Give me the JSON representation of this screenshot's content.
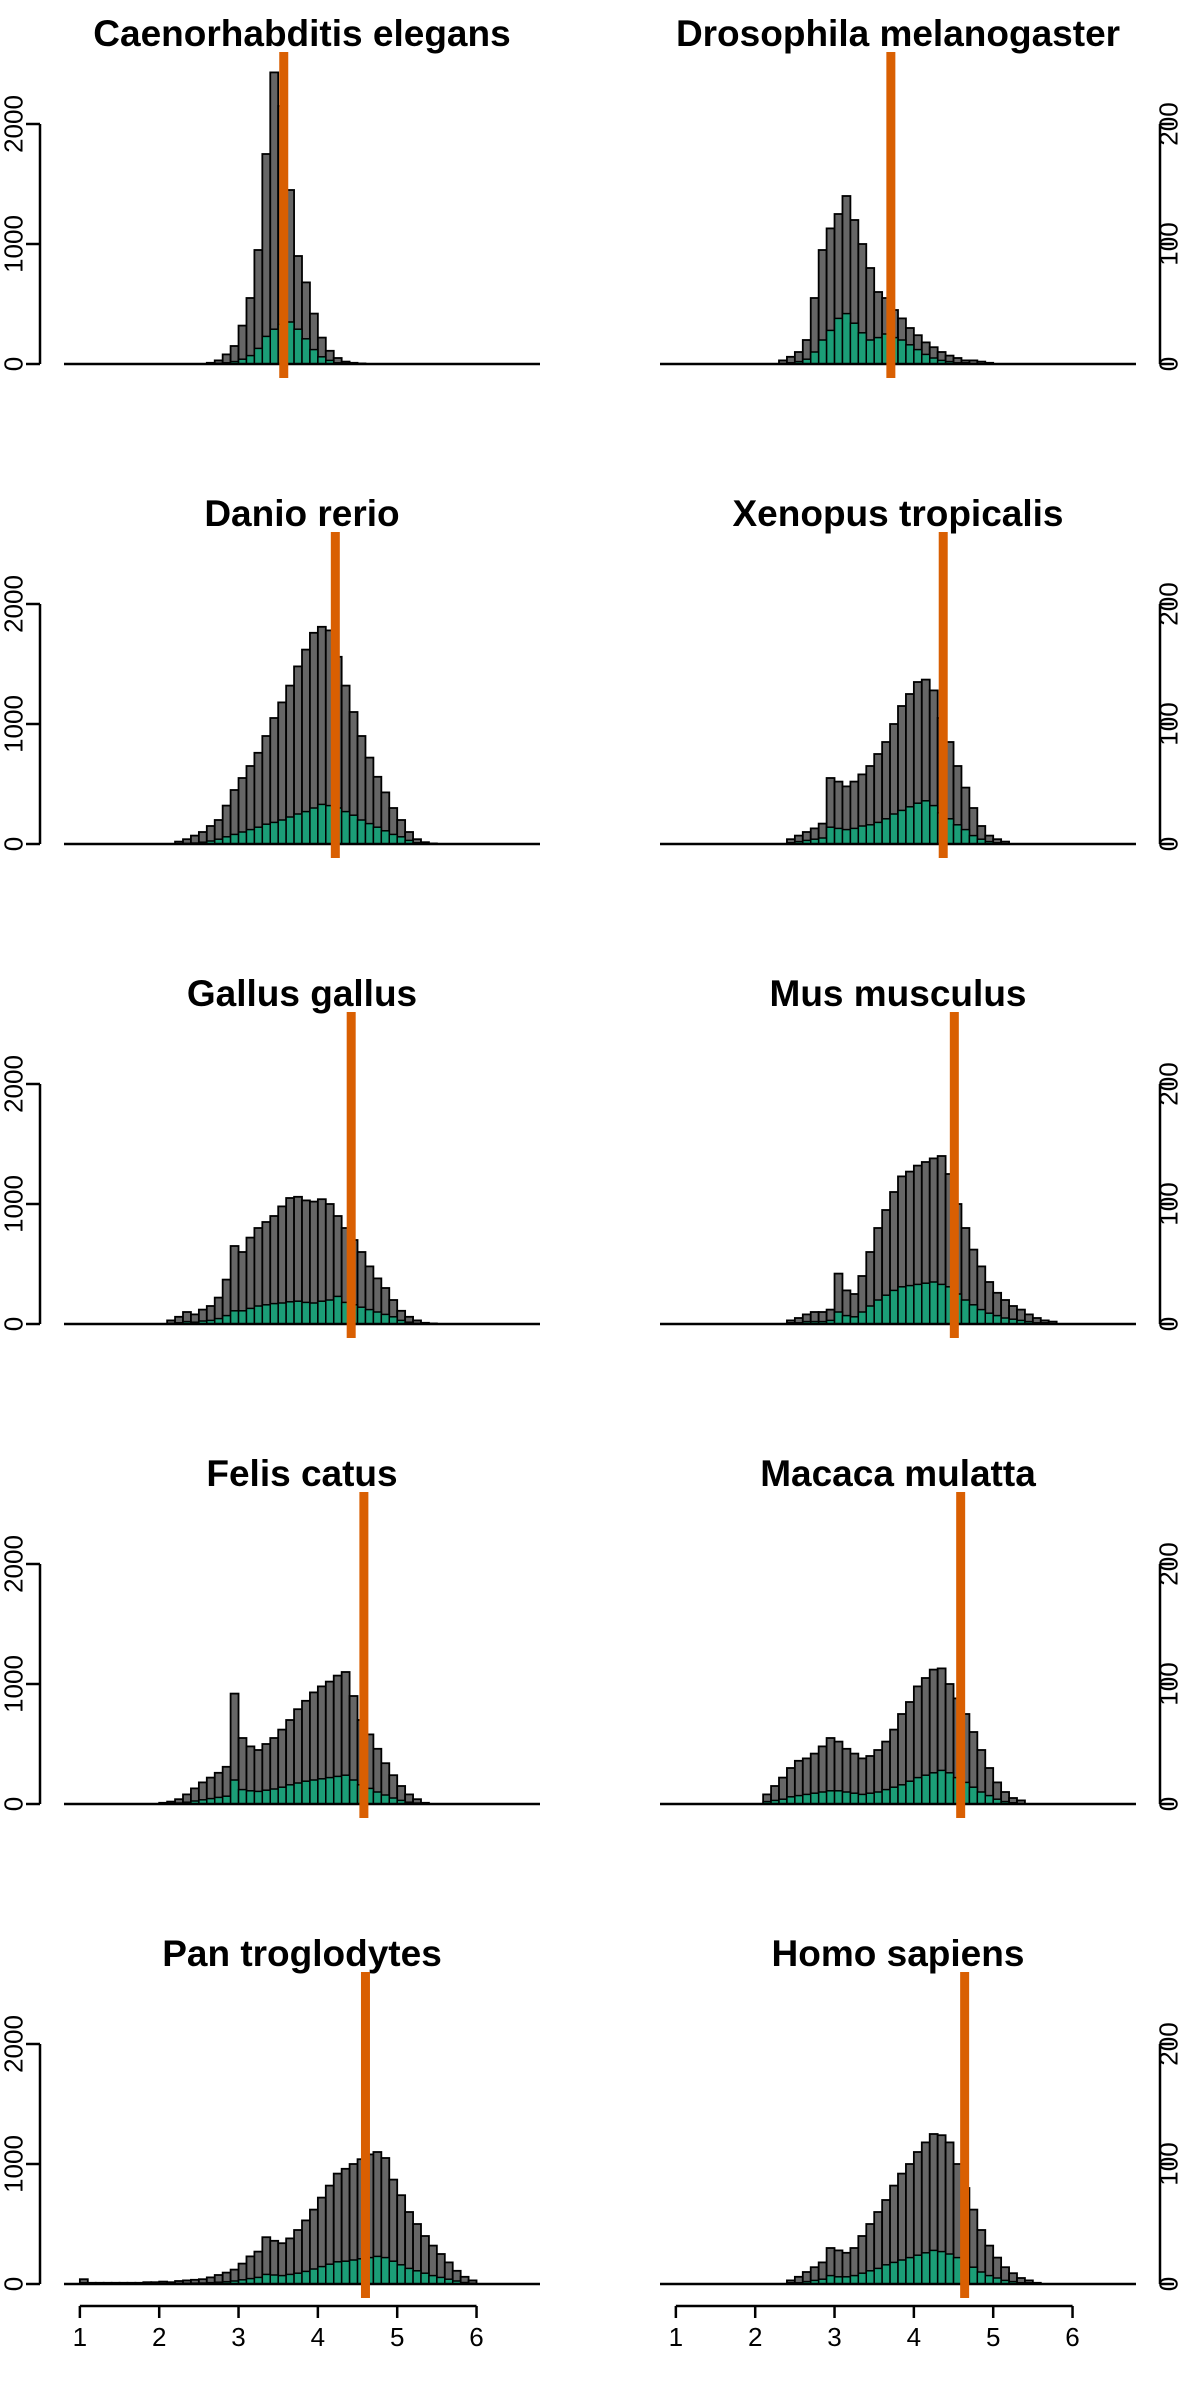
{
  "colors": {
    "total_bars": "#666666",
    "subset_bars": "#1b9e77",
    "median_line": "#d95f02"
  },
  "chart_data": [
    {
      "type": "bar",
      "title": "Caenorhabditis elegans",
      "median": 3.57,
      "bin_start": 2.6,
      "bin_width": 0.1,
      "gray": [
        10,
        30,
        80,
        150,
        320,
        550,
        950,
        1750,
        2430,
        2150,
        1450,
        900,
        680,
        420,
        220,
        110,
        50,
        20,
        10,
        5
      ],
      "green": [
        0,
        5,
        10,
        20,
        40,
        70,
        130,
        230,
        290,
        330,
        350,
        290,
        210,
        120,
        60,
        30,
        10,
        5,
        2,
        1
      ],
      "ylim": [
        0,
        2550
      ],
      "yticks": [
        0,
        1000,
        2000
      ],
      "ytick_labels": [
        "0",
        "1000",
        "2000"
      ],
      "y_axis_side": "left",
      "xlim": [
        0.8,
        6.8
      ],
      "xticks": [],
      "xtick_labels": []
    },
    {
      "type": "bar",
      "title": "Drosophila melanogaster",
      "median": 3.71,
      "bin_start": 2.3,
      "bin_width": 0.1,
      "gray": [
        3,
        6,
        10,
        20,
        55,
        95,
        113,
        125,
        140,
        120,
        100,
        80,
        60,
        55,
        45,
        38,
        30,
        24,
        18,
        14,
        10,
        7,
        5,
        3,
        3,
        2,
        1
      ],
      "green": [
        0,
        1,
        2,
        4,
        10,
        20,
        28,
        38,
        42,
        34,
        26,
        20,
        22,
        25,
        22,
        20,
        16,
        12,
        8,
        5,
        3,
        2,
        1,
        1,
        0,
        0,
        0
      ],
      "ylim": [
        0,
        255
      ],
      "yticks": [
        0,
        100,
        200
      ],
      "ytick_labels": [
        "0",
        "100",
        "200"
      ],
      "y_axis_side": "right",
      "xlim": [
        0.8,
        6.8
      ],
      "xticks": [],
      "xtick_labels": []
    },
    {
      "type": "bar",
      "title": "Danio rerio",
      "median": 4.22,
      "bin_start": 2.2,
      "bin_width": 0.1,
      "gray": [
        20,
        40,
        70,
        100,
        150,
        200,
        320,
        450,
        550,
        650,
        760,
        900,
        1050,
        1180,
        1320,
        1480,
        1620,
        1760,
        1810,
        1780,
        1560,
        1320,
        1100,
        900,
        720,
        560,
        430,
        300,
        200,
        100,
        40,
        15,
        5
      ],
      "green": [
        2,
        5,
        8,
        15,
        25,
        40,
        60,
        80,
        100,
        120,
        140,
        165,
        180,
        200,
        225,
        250,
        270,
        300,
        330,
        320,
        300,
        270,
        240,
        200,
        170,
        140,
        110,
        80,
        60,
        30,
        10,
        3,
        1
      ],
      "ylim": [
        0,
        2550
      ],
      "yticks": [
        0,
        1000,
        2000
      ],
      "ytick_labels": [
        "0",
        "1000",
        "2000"
      ],
      "y_axis_side": "left",
      "xlim": [
        0.8,
        6.8
      ],
      "xticks": [],
      "xtick_labels": []
    },
    {
      "type": "bar",
      "title": "Xenopus tropicalis",
      "median": 4.37,
      "bin_start": 2.4,
      "bin_width": 0.1,
      "gray": [
        4,
        7,
        10,
        13,
        17,
        55,
        52,
        48,
        52,
        58,
        65,
        75,
        85,
        100,
        115,
        125,
        135,
        137,
        128,
        105,
        85,
        65,
        47,
        30,
        15,
        7,
        4,
        2
      ],
      "green": [
        1,
        2,
        3,
        4,
        5,
        14,
        13,
        12,
        13,
        15,
        16,
        18,
        21,
        25,
        28,
        31,
        34,
        36,
        32,
        26,
        21,
        16,
        12,
        7,
        4,
        2,
        1,
        0
      ],
      "ylim": [
        0,
        255
      ],
      "yticks": [
        0,
        100,
        200
      ],
      "ytick_labels": [
        "0",
        "100",
        "200"
      ],
      "y_axis_side": "right",
      "xlim": [
        0.8,
        6.8
      ],
      "xticks": [],
      "xtick_labels": []
    },
    {
      "type": "bar",
      "title": "Gallus gallus",
      "median": 4.42,
      "bin_start": 2.0,
      "bin_width": 0.1,
      "gray": [
        0,
        30,
        60,
        100,
        80,
        120,
        150,
        220,
        370,
        650,
        600,
        720,
        800,
        850,
        900,
        980,
        1050,
        1060,
        1030,
        1020,
        1040,
        1000,
        900,
        800,
        700,
        600,
        480,
        380,
        300,
        200,
        110,
        60,
        30,
        10,
        5
      ],
      "green": [
        0,
        5,
        10,
        20,
        15,
        25,
        30,
        45,
        70,
        110,
        110,
        130,
        150,
        160,
        170,
        175,
        185,
        190,
        180,
        175,
        190,
        200,
        230,
        180,
        160,
        140,
        120,
        100,
        80,
        60,
        30,
        15,
        5,
        2,
        1
      ],
      "ylim": [
        0,
        2550
      ],
      "yticks": [
        0,
        1000,
        2000
      ],
      "ytick_labels": [
        "0",
        "1000",
        "2000"
      ],
      "y_axis_side": "left",
      "xlim": [
        0.8,
        6.8
      ],
      "xticks": [],
      "xtick_labels": []
    },
    {
      "type": "bar",
      "title": "Mus musculus",
      "median": 4.51,
      "bin_start": 2.4,
      "bin_width": 0.1,
      "gray": [
        3,
        5,
        8,
        10,
        10,
        12,
        42,
        28,
        25,
        40,
        60,
        80,
        95,
        110,
        123,
        127,
        132,
        135,
        138,
        140,
        125,
        100,
        80,
        62,
        48,
        35,
        26,
        20,
        15,
        12,
        8,
        5,
        3,
        2
      ],
      "green": [
        1,
        1,
        2,
        2,
        2,
        3,
        10,
        7,
        6,
        10,
        15,
        20,
        24,
        28,
        31,
        32,
        33,
        34,
        35,
        33,
        31,
        25,
        20,
        16,
        12,
        9,
        7,
        5,
        4,
        3,
        2,
        1,
        1,
        0
      ],
      "ylim": [
        0,
        255
      ],
      "yticks": [
        0,
        100,
        200
      ],
      "ytick_labels": [
        "0",
        "100",
        "200"
      ],
      "y_axis_side": "right",
      "xlim": [
        0.8,
        6.8
      ],
      "xticks": [],
      "xtick_labels": []
    },
    {
      "type": "bar",
      "title": "Felis catus",
      "median": 4.58,
      "bin_start": 2.0,
      "bin_width": 0.1,
      "gray": [
        10,
        20,
        40,
        80,
        130,
        180,
        220,
        260,
        310,
        920,
        550,
        480,
        450,
        500,
        550,
        620,
        700,
        790,
        860,
        930,
        980,
        1020,
        1070,
        1100,
        900,
        700,
        580,
        460,
        340,
        240,
        150,
        80,
        40,
        10
      ],
      "green": [
        2,
        5,
        8,
        15,
        25,
        35,
        45,
        55,
        65,
        200,
        120,
        110,
        105,
        115,
        125,
        140,
        160,
        175,
        190,
        200,
        210,
        220,
        230,
        240,
        200,
        160,
        130,
        100,
        75,
        50,
        30,
        15,
        8,
        2
      ],
      "ylim": [
        0,
        2550
      ],
      "yticks": [
        0,
        1000,
        2000
      ],
      "ytick_labels": [
        "0",
        "1000",
        "2000"
      ],
      "y_axis_side": "left",
      "xlim": [
        0.8,
        6.8
      ],
      "xticks": [],
      "xtick_labels": []
    },
    {
      "type": "bar",
      "title": "Macaca mulatta",
      "median": 4.59,
      "bin_start": 2.1,
      "bin_width": 0.1,
      "gray": [
        8,
        15,
        22,
        30,
        36,
        38,
        42,
        48,
        55,
        52,
        46,
        42,
        38,
        40,
        45,
        52,
        62,
        75,
        85,
        98,
        105,
        112,
        113,
        100,
        88,
        75,
        60,
        45,
        30,
        18,
        10,
        5,
        3
      ],
      "green": [
        2,
        3,
        4,
        6,
        7,
        8,
        9,
        10,
        11,
        11,
        10,
        9,
        8,
        9,
        10,
        12,
        14,
        16,
        19,
        22,
        24,
        26,
        28,
        26,
        22,
        18,
        14,
        10,
        7,
        4,
        2,
        1,
        0
      ],
      "ylim": [
        0,
        255
      ],
      "yticks": [
        0,
        100,
        200
      ],
      "ytick_labels": [
        "0",
        "100",
        "200"
      ],
      "y_axis_side": "right",
      "xlim": [
        0.8,
        6.8
      ],
      "xticks": [],
      "xtick_labels": []
    },
    {
      "type": "bar",
      "title": "Pan troglodytes",
      "median": 4.6,
      "bin_start": 1.0,
      "bin_width": 0.1,
      "gray": [
        40,
        10,
        10,
        10,
        10,
        10,
        10,
        10,
        15,
        15,
        20,
        15,
        25,
        30,
        35,
        40,
        55,
        75,
        95,
        120,
        170,
        230,
        270,
        390,
        360,
        340,
        380,
        450,
        530,
        620,
        720,
        820,
        920,
        960,
        1000,
        1040,
        1080,
        1100,
        1050,
        870,
        740,
        600,
        500,
        400,
        320,
        250,
        180,
        110,
        60,
        30
      ],
      "green": [
        10,
        2,
        2,
        2,
        2,
        2,
        2,
        2,
        3,
        3,
        4,
        3,
        5,
        6,
        7,
        8,
        11,
        15,
        19,
        25,
        35,
        45,
        55,
        80,
        75,
        70,
        80,
        90,
        105,
        125,
        145,
        165,
        185,
        190,
        200,
        210,
        220,
        230,
        220,
        190,
        160,
        130,
        110,
        90,
        70,
        55,
        40,
        25,
        12,
        5
      ],
      "ylim": [
        0,
        2550
      ],
      "yticks": [
        0,
        1000,
        2000
      ],
      "ytick_labels": [
        "0",
        "1000",
        "2000"
      ],
      "y_axis_side": "left",
      "xlim": [
        0.8,
        6.8
      ],
      "xticks": [
        1,
        2,
        3,
        4,
        5,
        6
      ],
      "xtick_labels": [
        "1",
        "2",
        "3",
        "4",
        "5",
        "6"
      ]
    },
    {
      "type": "bar",
      "title": "Homo sapiens",
      "median": 4.64,
      "bin_start": 2.4,
      "bin_width": 0.1,
      "gray": [
        3,
        6,
        10,
        14,
        18,
        30,
        28,
        26,
        30,
        40,
        50,
        60,
        70,
        82,
        92,
        100,
        110,
        118,
        125,
        124,
        118,
        100,
        80,
        62,
        45,
        32,
        22,
        14,
        9,
        5,
        3,
        1
      ],
      "green": [
        1,
        1,
        2,
        3,
        4,
        7,
        6,
        6,
        7,
        9,
        11,
        13,
        16,
        18,
        20,
        22,
        24,
        26,
        28,
        27,
        25,
        22,
        18,
        14,
        10,
        7,
        5,
        3,
        2,
        1,
        1,
        0
      ],
      "ylim": [
        0,
        255
      ],
      "yticks": [
        0,
        100,
        200
      ],
      "ytick_labels": [
        "0",
        "100",
        "200"
      ],
      "y_axis_side": "right",
      "xlim": [
        0.8,
        6.8
      ],
      "xticks": [
        1,
        2,
        3,
        4,
        5,
        6
      ],
      "xtick_labels": [
        "1",
        "2",
        "3",
        "4",
        "5",
        "6"
      ]
    }
  ]
}
